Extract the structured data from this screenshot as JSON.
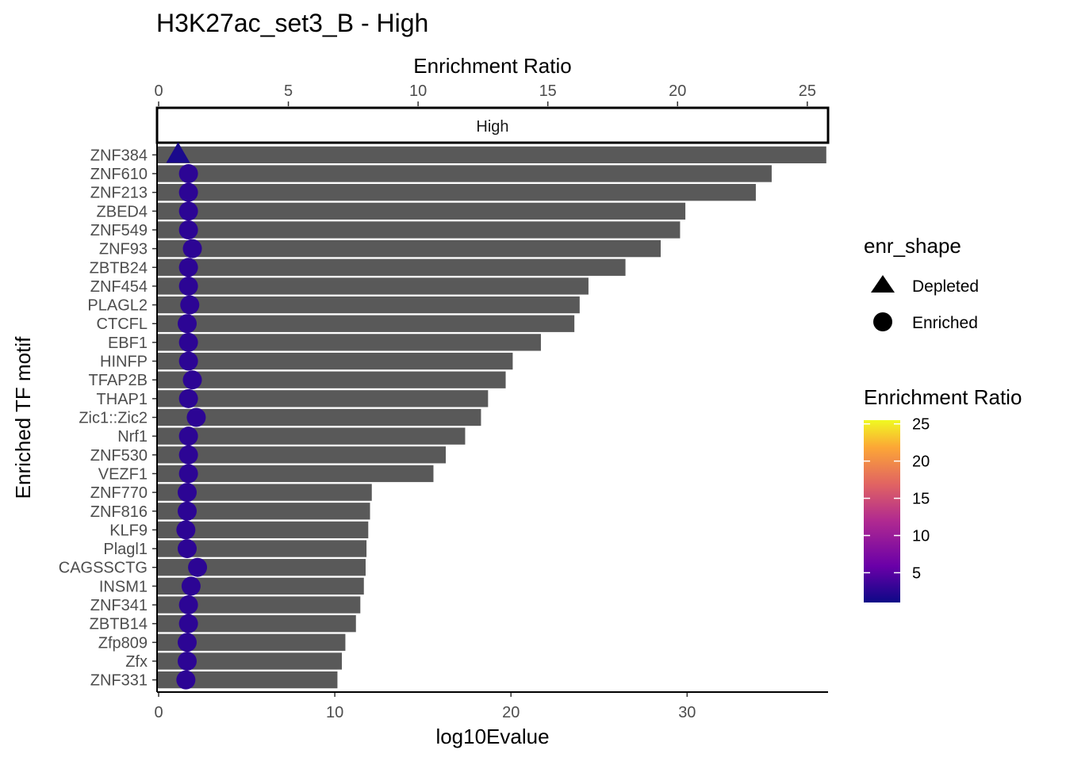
{
  "chart_data": {
    "type": "bar",
    "title": "H3K27ac_set3_B - High",
    "xlabel": "log10Evalue",
    "ylabel": "Enriched TF motif",
    "secondary_xlabel": "Enrichment Ratio",
    "facet_label": "High",
    "xlim": [
      0,
      38
    ],
    "x_ticks": [
      0,
      10,
      20,
      30
    ],
    "secondary_xlim": [
      0,
      25.8
    ],
    "secondary_x_ticks": [
      0,
      5,
      10,
      15,
      20,
      25
    ],
    "categories": [
      "ZNF384",
      "ZNF610",
      "ZNF213",
      "ZBED4",
      "ZNF549",
      "ZNF93",
      "ZBTB24",
      "ZNF454",
      "PLAGL2",
      "CTCFL",
      "EBF1",
      "HINFP",
      "TFAP2B",
      "THAP1",
      "Zic1::Zic2",
      "Nrf1",
      "ZNF530",
      "VEZF1",
      "ZNF770",
      "ZNF816",
      "KLF9",
      "Plagl1",
      "CAGSSCTG",
      "INSM1",
      "ZNF341",
      "ZBTB14",
      "Zfp809",
      "Zfx",
      "ZNF331"
    ],
    "values": [
      37.9,
      34.8,
      33.9,
      29.9,
      29.6,
      28.5,
      26.5,
      24.4,
      23.9,
      23.6,
      21.7,
      20.1,
      19.7,
      18.7,
      18.3,
      17.4,
      16.3,
      15.6,
      12.1,
      12.0,
      11.9,
      11.8,
      11.75,
      11.65,
      11.45,
      11.2,
      10.6,
      10.4,
      10.15
    ],
    "enrichment_ratio": [
      0.75,
      1.15,
      1.15,
      1.15,
      1.15,
      1.3,
      1.15,
      1.15,
      1.2,
      1.1,
      1.15,
      1.15,
      1.3,
      1.15,
      1.45,
      1.15,
      1.15,
      1.15,
      1.1,
      1.1,
      1.05,
      1.1,
      1.5,
      1.25,
      1.15,
      1.15,
      1.1,
      1.1,
      1.05
    ],
    "enr_shape": [
      "Depleted",
      "Enriched",
      "Enriched",
      "Enriched",
      "Enriched",
      "Enriched",
      "Enriched",
      "Enriched",
      "Enriched",
      "Enriched",
      "Enriched",
      "Enriched",
      "Enriched",
      "Enriched",
      "Enriched",
      "Enriched",
      "Enriched",
      "Enriched",
      "Enriched",
      "Enriched",
      "Enriched",
      "Enriched",
      "Enriched",
      "Enriched",
      "Enriched",
      "Enriched",
      "Enriched",
      "Enriched",
      "Enriched"
    ],
    "legend_shape": {
      "title": "enr_shape",
      "items": [
        "Depleted",
        "Enriched"
      ]
    },
    "legend_color": {
      "title": "Enrichment Ratio",
      "ticks": [
        25,
        20,
        15,
        10,
        5
      ],
      "range": [
        1,
        25.5
      ]
    },
    "colors": {
      "bar": "#595959",
      "marker": "#2c0594",
      "depleted_marker": "#1a0a8c",
      "axis": "#000000",
      "tick_text": "#4d4d4d",
      "gradient": [
        "#0d0887",
        "#6a00a8",
        "#b12a90",
        "#e16462",
        "#fca636",
        "#f0f921"
      ]
    }
  }
}
